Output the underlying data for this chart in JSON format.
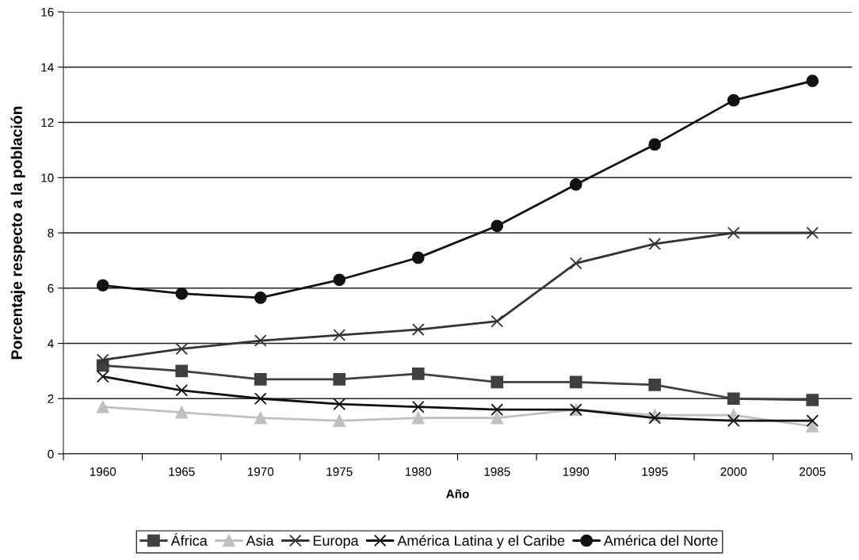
{
  "chart_data": {
    "type": "line",
    "xlabel": "Año",
    "ylabel": "Porcentaje respecto a la población",
    "categories": [
      "1960",
      "1965",
      "1970",
      "1975",
      "1980",
      "1985",
      "1990",
      "1995",
      "2000",
      "2005"
    ],
    "ylim": [
      0,
      16
    ],
    "yticks": [
      0,
      2,
      4,
      6,
      8,
      10,
      12,
      14,
      16
    ],
    "grid": "y",
    "legend": "bottom",
    "series": [
      {
        "name": "África",
        "color": "#404040",
        "marker": "square",
        "values": [
          3.2,
          3.0,
          2.7,
          2.7,
          2.9,
          2.6,
          2.6,
          2.5,
          2.0,
          1.95
        ]
      },
      {
        "name": "Asia",
        "color": "#c0c0c0",
        "marker": "triangle",
        "values": [
          1.7,
          1.5,
          1.3,
          1.2,
          1.3,
          1.3,
          1.6,
          1.4,
          1.4,
          1.0
        ]
      },
      {
        "name": "Europa",
        "color": "#333333",
        "marker": "cross",
        "values": [
          3.4,
          3.8,
          4.1,
          4.3,
          4.5,
          4.8,
          6.9,
          7.6,
          8.0,
          8.0
        ]
      },
      {
        "name": "América Latina y el Caribe",
        "color": "#111111",
        "marker": "cross",
        "values": [
          2.8,
          2.3,
          2.0,
          1.8,
          1.7,
          1.6,
          1.6,
          1.3,
          1.2,
          1.2
        ]
      },
      {
        "name": "América del Norte",
        "color": "#111111",
        "marker": "circle",
        "values": [
          6.1,
          5.8,
          5.65,
          6.3,
          7.1,
          8.25,
          9.75,
          11.2,
          12.8,
          13.5
        ]
      }
    ]
  }
}
